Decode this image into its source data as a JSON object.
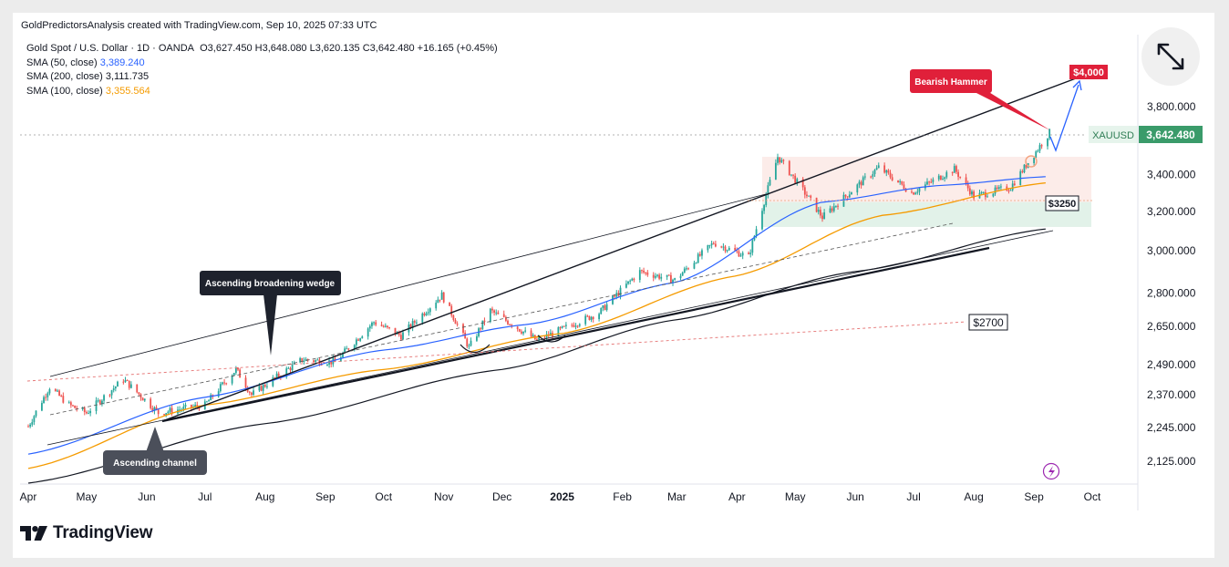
{
  "header": {
    "attribution": "GoldPredictorsAnalysis created with TradingView.com, Sep 10, 2025 07:33 UTC"
  },
  "legend": {
    "symbol_line": "Gold Spot / U.S. Dollar · 1D · OANDA",
    "ohlc": "O3,627.450  H3,648.080  L3,620.135  C3,642.480  +16.165 (+0.45%)",
    "sma50": {
      "label": "SMA (50, close)",
      "value": "3,389.240"
    },
    "sma200": {
      "label": "SMA (200, close)",
      "value": "3,111.735"
    },
    "sma100": {
      "label": "SMA (100, close)",
      "value": "3,355.564"
    }
  },
  "footer": {
    "brand": "TradingView"
  },
  "colors": {
    "up": "#26a69a",
    "down": "#ef5350",
    "sma50": "#2962ff",
    "sma100": "#f59b00",
    "sma200": "#131722",
    "label_red": "#e0203a",
    "price_green": "#3a9b6a"
  },
  "chart_data": {
    "type": "candlestick",
    "symbol": "XAUUSD",
    "timeframe": "1D",
    "last_price": "3,642.480",
    "x_ticks": [
      "Apr",
      "May",
      "Jun",
      "Jul",
      "Aug",
      "Sep",
      "Oct",
      "Nov",
      "Dec",
      "2025",
      "Feb",
      "Mar",
      "Apr",
      "May",
      "Jun",
      "Jul",
      "Aug",
      "Sep",
      "Oct"
    ],
    "x_tick_dates": [
      "2024-04-01",
      "2024-05-01",
      "2024-06-01",
      "2024-07-01",
      "2024-08-01",
      "2024-09-01",
      "2024-10-01",
      "2024-11-01",
      "2024-12-01",
      "2025-01-01",
      "2025-02-01",
      "2025-03-01",
      "2025-04-01",
      "2025-05-01",
      "2025-06-01",
      "2025-07-01",
      "2025-08-01",
      "2025-09-01",
      "2025-10-01"
    ],
    "y_ticks": [
      {
        "value": 3800,
        "label": "3,800.000"
      },
      {
        "value": 3400,
        "label": "3,400.000"
      },
      {
        "value": 3200,
        "label": "3,200.000"
      },
      {
        "value": 3000,
        "label": "3,000.000"
      },
      {
        "value": 2800,
        "label": "2,800.000"
      },
      {
        "value": 2650,
        "label": "2,650.000"
      },
      {
        "value": 2490,
        "label": "2,490.000"
      },
      {
        "value": 2370,
        "label": "2,370.000"
      },
      {
        "value": 2245,
        "label": "2,245.000"
      },
      {
        "value": 2125,
        "label": "2,125.000"
      }
    ],
    "y_scale": "log",
    "price_path": [
      [
        "2024-04-01",
        2250
      ],
      [
        "2024-04-12",
        2400
      ],
      [
        "2024-04-22",
        2330
      ],
      [
        "2024-05-01",
        2300
      ],
      [
        "2024-05-20",
        2430
      ],
      [
        "2024-06-07",
        2300
      ],
      [
        "2024-07-01",
        2330
      ],
      [
        "2024-07-17",
        2470
      ],
      [
        "2024-07-25",
        2370
      ],
      [
        "2024-08-20",
        2510
      ],
      [
        "2024-09-06",
        2500
      ],
      [
        "2024-09-26",
        2670
      ],
      [
        "2024-10-10",
        2610
      ],
      [
        "2024-10-31",
        2790
      ],
      [
        "2024-11-14",
        2560
      ],
      [
        "2024-11-25",
        2720
      ],
      [
        "2024-12-19",
        2590
      ],
      [
        "2025-01-20",
        2710
      ],
      [
        "2025-02-10",
        2900
      ],
      [
        "2025-02-28",
        2860
      ],
      [
        "2025-03-20",
        3040
      ],
      [
        "2025-04-07",
        2970
      ],
      [
        "2025-04-22",
        3500
      ],
      [
        "2025-05-15",
        3170
      ],
      [
        "2025-06-13",
        3440
      ],
      [
        "2025-06-30",
        3300
      ],
      [
        "2025-07-22",
        3430
      ],
      [
        "2025-08-01",
        3280
      ],
      [
        "2025-08-20",
        3330
      ],
      [
        "2025-09-02",
        3530
      ],
      [
        "2025-09-09",
        3642
      ]
    ],
    "sma50": [
      [
        "2024-04-01",
        2150
      ],
      [
        "2024-07-01",
        2360
      ],
      [
        "2024-10-01",
        2550
      ],
      [
        "2024-12-15",
        2660
      ],
      [
        "2025-03-01",
        2850
      ],
      [
        "2025-05-15",
        3250
      ],
      [
        "2025-07-15",
        3340
      ],
      [
        "2025-09-09",
        3389
      ]
    ],
    "sma100": [
      [
        "2024-04-01",
        2100
      ],
      [
        "2024-07-01",
        2330
      ],
      [
        "2024-10-01",
        2470
      ],
      [
        "2025-01-01",
        2620
      ],
      [
        "2025-04-01",
        2880
      ],
      [
        "2025-06-15",
        3180
      ],
      [
        "2025-09-09",
        3356
      ]
    ],
    "sma200": [
      [
        "2024-04-01",
        2050
      ],
      [
        "2024-08-01",
        2260
      ],
      [
        "2024-12-01",
        2470
      ],
      [
        "2025-03-01",
        2680
      ],
      [
        "2025-06-01",
        2900
      ],
      [
        "2025-09-09",
        3112
      ]
    ],
    "annotations": [
      {
        "text": "Bearish Hammer"
      },
      {
        "text": "$4,000"
      },
      {
        "text": "$3250"
      },
      {
        "text": "$2700"
      },
      {
        "text": "Ascending broadening wedge"
      },
      {
        "text": "Ascending channel"
      }
    ]
  }
}
